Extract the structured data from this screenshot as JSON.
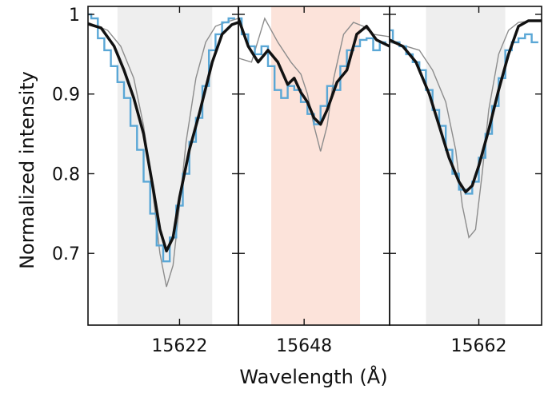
{
  "colors": {
    "observed": "#5aa7d6",
    "fit": "#111111",
    "model": "#8c8c8c",
    "band_gray": "#eeeeee",
    "band_red": "#fce3da",
    "frame": "#111111"
  },
  "chart_data": {
    "type": "line",
    "xlabel": "Wavelength (Å)",
    "ylabel": "Normalized intensity",
    "ylim": [
      0.61,
      1.01
    ],
    "yticks": [
      0.7,
      0.8,
      0.9,
      1.0
    ],
    "ytick_labels": [
      "0.7",
      "0.8",
      "0.9",
      "1"
    ],
    "grid": false,
    "legend": "none",
    "series_roles": [
      "observed spectrum (blue step)",
      "fitted profile (thick black)",
      "model line (thin gray)"
    ],
    "panels": [
      {
        "xtick": 15622,
        "xtick_label": "15622",
        "xlim": [
          15619.2,
          15623.8
        ],
        "band": {
          "from": 15620.1,
          "to": 15623.0,
          "color": "gray"
        },
        "observed": {
          "x": [
            15619.2,
            15619.4,
            15619.6,
            15619.8,
            15620.0,
            15620.2,
            15620.4,
            15620.6,
            15620.8,
            15621.0,
            15621.2,
            15621.4,
            15621.6,
            15621.8,
            15622.0,
            15622.2,
            15622.4,
            15622.6,
            15622.8,
            15623.0,
            15623.2,
            15623.4,
            15623.6
          ],
          "y": [
            1.0,
            0.995,
            0.97,
            0.955,
            0.935,
            0.915,
            0.895,
            0.86,
            0.83,
            0.79,
            0.75,
            0.71,
            0.69,
            0.72,
            0.76,
            0.8,
            0.84,
            0.87,
            0.91,
            0.955,
            0.975,
            0.99,
            0.995
          ]
        },
        "fit": {
          "x": [
            15619.2,
            15619.6,
            15620.0,
            15620.3,
            15620.6,
            15620.9,
            15621.2,
            15621.4,
            15621.6,
            15621.8,
            15622.0,
            15622.3,
            15622.6,
            15623.0,
            15623.3,
            15623.6,
            15623.8
          ],
          "y": [
            0.988,
            0.983,
            0.96,
            0.93,
            0.895,
            0.85,
            0.78,
            0.73,
            0.703,
            0.72,
            0.77,
            0.83,
            0.875,
            0.94,
            0.975,
            0.987,
            0.99
          ],
          "stroke_pt": 3.5
        },
        "model": {
          "x": [
            15619.2,
            15619.8,
            15620.2,
            15620.6,
            15620.9,
            15621.2,
            15621.4,
            15621.6,
            15621.8,
            15622.0,
            15622.2,
            15622.5,
            15622.8,
            15623.1,
            15623.4,
            15623.8
          ],
          "y": [
            0.99,
            0.98,
            0.96,
            0.92,
            0.86,
            0.77,
            0.7,
            0.658,
            0.685,
            0.76,
            0.84,
            0.92,
            0.965,
            0.985,
            0.99,
            0.995
          ]
        }
      },
      {
        "xtick": 15648,
        "xtick_label": "15648",
        "xlim": [
          15646.0,
          15650.6
        ],
        "band": {
          "from": 15647.0,
          "to": 15649.7,
          "color": "red"
        },
        "observed": {
          "x": [
            15646.0,
            15646.2,
            15646.4,
            15646.6,
            15646.8,
            15647.0,
            15647.2,
            15647.4,
            15647.6,
            15647.8,
            15648.0,
            15648.2,
            15648.4,
            15648.6,
            15648.8,
            15649.0,
            15649.2,
            15649.4,
            15649.6,
            15649.8,
            15650.0,
            15650.2,
            15650.4
          ],
          "y": [
            0.995,
            0.975,
            0.96,
            0.95,
            0.96,
            0.935,
            0.905,
            0.895,
            0.91,
            0.905,
            0.89,
            0.875,
            0.862,
            0.885,
            0.91,
            0.905,
            0.935,
            0.955,
            0.96,
            0.968,
            0.97,
            0.955,
            0.965
          ]
        },
        "fit": {
          "x": [
            15646.0,
            15646.3,
            15646.6,
            15646.9,
            15647.2,
            15647.5,
            15647.7,
            15647.9,
            15648.1,
            15648.3,
            15648.5,
            15648.7,
            15649.0,
            15649.3,
            15649.6,
            15649.9,
            15650.2,
            15650.6
          ],
          "y": [
            0.995,
            0.96,
            0.94,
            0.955,
            0.94,
            0.912,
            0.92,
            0.902,
            0.89,
            0.87,
            0.862,
            0.88,
            0.915,
            0.93,
            0.975,
            0.985,
            0.968,
            0.96
          ],
          "stroke_pt": 3.5
        },
        "model": {
          "x": [
            15646.0,
            15646.4,
            15646.8,
            15647.2,
            15647.6,
            15647.9,
            15648.1,
            15648.3,
            15648.5,
            15648.7,
            15648.9,
            15649.2,
            15649.5,
            15649.8,
            15650.1,
            15650.6
          ],
          "y": [
            0.945,
            0.94,
            0.995,
            0.965,
            0.94,
            0.925,
            0.9,
            0.86,
            0.828,
            0.86,
            0.92,
            0.975,
            0.99,
            0.985,
            0.975,
            0.972
          ]
        }
      },
      {
        "xtick": 15662,
        "xtick_label": "15662",
        "xlim": [
          15659.3,
          15663.9
        ],
        "band": {
          "from": 15660.4,
          "to": 15662.8,
          "color": "gray"
        },
        "observed": {
          "x": [
            15659.3,
            15659.5,
            15659.7,
            15659.9,
            15660.1,
            15660.3,
            15660.5,
            15660.7,
            15660.9,
            15661.1,
            15661.3,
            15661.5,
            15661.7,
            15661.9,
            15662.1,
            15662.3,
            15662.5,
            15662.7,
            15662.9,
            15663.1,
            15663.3,
            15663.5,
            15663.7
          ],
          "y": [
            0.98,
            0.965,
            0.96,
            0.95,
            0.94,
            0.93,
            0.905,
            0.88,
            0.86,
            0.83,
            0.8,
            0.78,
            0.775,
            0.79,
            0.82,
            0.85,
            0.885,
            0.92,
            0.955,
            0.965,
            0.97,
            0.975,
            0.965
          ]
        },
        "fit": {
          "x": [
            15659.3,
            15659.7,
            15660.1,
            15660.5,
            15660.8,
            15661.1,
            15661.4,
            15661.6,
            15661.8,
            15662.0,
            15662.3,
            15662.6,
            15662.9,
            15663.2,
            15663.5,
            15663.9
          ],
          "y": [
            0.968,
            0.96,
            0.94,
            0.9,
            0.86,
            0.82,
            0.79,
            0.777,
            0.785,
            0.81,
            0.855,
            0.905,
            0.95,
            0.985,
            0.992,
            0.992
          ],
          "stroke_pt": 3.5
        },
        "model": {
          "x": [
            15659.3,
            15659.8,
            15660.2,
            15660.6,
            15661.0,
            15661.3,
            15661.5,
            15661.7,
            15661.9,
            15662.1,
            15662.3,
            15662.6,
            15662.9,
            15663.2,
            15663.9
          ],
          "y": [
            0.965,
            0.96,
            0.955,
            0.93,
            0.89,
            0.83,
            0.76,
            0.72,
            0.73,
            0.8,
            0.88,
            0.95,
            0.98,
            0.99,
            0.993
          ]
        }
      }
    ]
  }
}
